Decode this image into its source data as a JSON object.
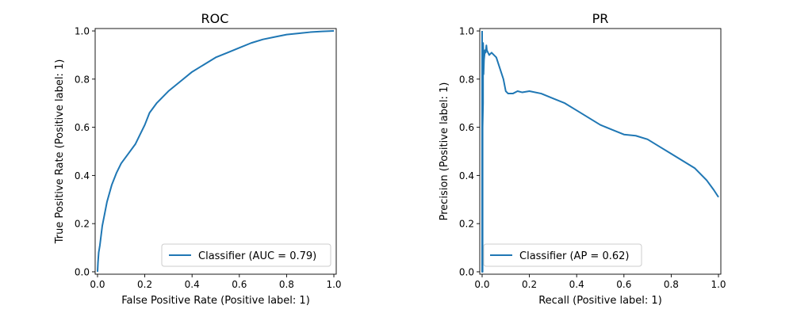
{
  "chart_data": [
    {
      "type": "line",
      "title": "ROC",
      "xlabel": "False Positive Rate (Positive label: 1)",
      "ylabel": "True Positive Rate (Positive label: 1)",
      "xlim": [
        -0.01,
        1.01
      ],
      "ylim": [
        -0.01,
        1.01
      ],
      "xticks": [
        0.0,
        0.2,
        0.4,
        0.6,
        0.8,
        1.0
      ],
      "yticks": [
        0.0,
        0.2,
        0.4,
        0.6,
        0.8,
        1.0
      ],
      "xtick_labels": [
        "0.0",
        "0.2",
        "0.4",
        "0.6",
        "0.8",
        "1.0"
      ],
      "ytick_labels": [
        "0.0",
        "0.2",
        "0.4",
        "0.6",
        "0.8",
        "1.0"
      ],
      "grid": false,
      "legend_position": "lower-right",
      "series": [
        {
          "name": "Classifier (AUC = 0.79)",
          "color": "#1f77b4",
          "x": [
            0.0,
            0.002,
            0.005,
            0.01,
            0.015,
            0.02,
            0.03,
            0.04,
            0.06,
            0.08,
            0.1,
            0.13,
            0.16,
            0.18,
            0.2,
            0.22,
            0.25,
            0.3,
            0.35,
            0.4,
            0.45,
            0.5,
            0.55,
            0.6,
            0.65,
            0.7,
            0.75,
            0.8,
            0.85,
            0.9,
            0.95,
            1.0
          ],
          "y": [
            0.0,
            0.04,
            0.08,
            0.11,
            0.15,
            0.19,
            0.24,
            0.29,
            0.36,
            0.41,
            0.45,
            0.49,
            0.53,
            0.57,
            0.61,
            0.66,
            0.7,
            0.75,
            0.79,
            0.83,
            0.86,
            0.89,
            0.91,
            0.93,
            0.95,
            0.965,
            0.975,
            0.985,
            0.99,
            0.995,
            0.998,
            1.0
          ]
        }
      ]
    },
    {
      "type": "line",
      "title": "PR",
      "xlabel": "Recall (Positive label: 1)",
      "ylabel": "Precision (Positive label: 1)",
      "xlim": [
        -0.01,
        1.01
      ],
      "ylim": [
        -0.01,
        1.01
      ],
      "xticks": [
        0.0,
        0.2,
        0.4,
        0.6,
        0.8,
        1.0
      ],
      "yticks": [
        0.0,
        0.2,
        0.4,
        0.6,
        0.8,
        1.0
      ],
      "xtick_labels": [
        "0.0",
        "0.2",
        "0.4",
        "0.6",
        "0.8",
        "1.0"
      ],
      "ytick_labels": [
        "0.0",
        "0.2",
        "0.4",
        "0.6",
        "0.8",
        "1.0"
      ],
      "grid": false,
      "legend_position": "lower-left",
      "series": [
        {
          "name": "Classifier (AP = 0.62)",
          "color": "#1f77b4",
          "x": [
            0.0,
            0.0,
            0.002,
            0.002,
            0.004,
            0.004,
            0.006,
            0.006,
            0.008,
            0.01,
            0.012,
            0.015,
            0.018,
            0.02,
            0.025,
            0.03,
            0.04,
            0.05,
            0.06,
            0.07,
            0.08,
            0.09,
            0.1,
            0.11,
            0.13,
            0.15,
            0.17,
            0.2,
            0.25,
            0.3,
            0.35,
            0.4,
            0.45,
            0.5,
            0.55,
            0.6,
            0.65,
            0.7,
            0.75,
            0.8,
            0.85,
            0.9,
            0.95,
            0.98,
            1.0
          ],
          "y": [
            1.0,
            0.0,
            0.0,
            0.6,
            0.7,
            0.95,
            0.9,
            0.82,
            0.88,
            0.9,
            0.92,
            0.91,
            0.94,
            0.92,
            0.91,
            0.9,
            0.91,
            0.9,
            0.89,
            0.86,
            0.83,
            0.8,
            0.75,
            0.74,
            0.74,
            0.75,
            0.745,
            0.75,
            0.74,
            0.72,
            0.7,
            0.67,
            0.64,
            0.61,
            0.59,
            0.57,
            0.565,
            0.55,
            0.52,
            0.49,
            0.46,
            0.43,
            0.38,
            0.34,
            0.31
          ]
        }
      ]
    }
  ]
}
